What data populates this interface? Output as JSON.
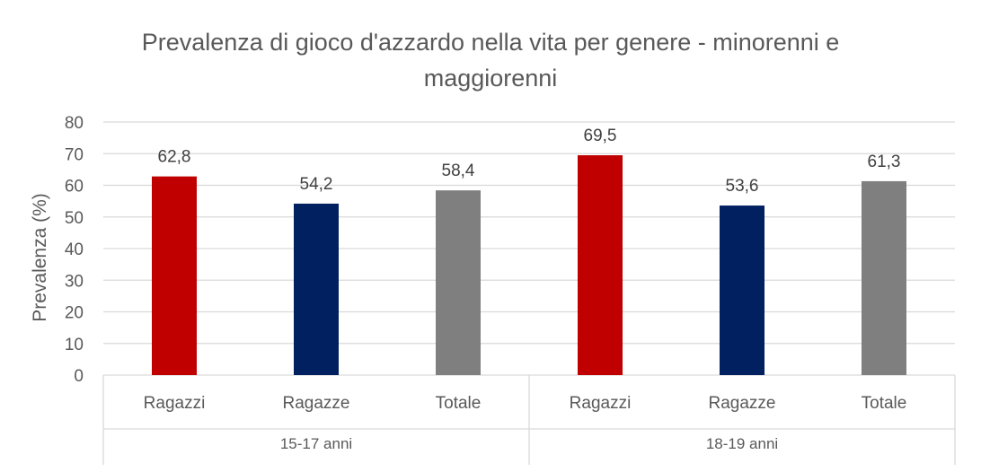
{
  "chart_data": {
    "type": "bar",
    "title": "Prevalenza di gioco d'azzardo nella vita per genere - minorenni e maggiorenni",
    "title_lines": [
      "Prevalenza di gioco d'azzardo nella vita per genere - minorenni e",
      "maggiorenni"
    ],
    "ylabel": "Prevalenza (%)",
    "ylim": [
      0,
      80
    ],
    "yticks": [
      0,
      10,
      20,
      30,
      40,
      50,
      60,
      70,
      80
    ],
    "grid": true,
    "legend": "none",
    "groups": [
      {
        "label": "15-17 anni",
        "bars": [
          {
            "category": "Ragazzi",
            "value": 62.8,
            "value_label": "62,8",
            "color": "#C00000"
          },
          {
            "category": "Ragazze",
            "value": 54.2,
            "value_label": "54,2",
            "color": "#002060"
          },
          {
            "category": "Totale",
            "value": 58.4,
            "value_label": "58,4",
            "color": "#7F7F7F"
          }
        ]
      },
      {
        "label": "18-19 anni",
        "bars": [
          {
            "category": "Ragazzi",
            "value": 69.5,
            "value_label": "69,5",
            "color": "#C00000"
          },
          {
            "category": "Ragazze",
            "value": 53.6,
            "value_label": "53,6",
            "color": "#002060"
          },
          {
            "category": "Totale",
            "value": 61.3,
            "value_label": "61,3",
            "color": "#7F7F7F"
          }
        ]
      }
    ]
  }
}
